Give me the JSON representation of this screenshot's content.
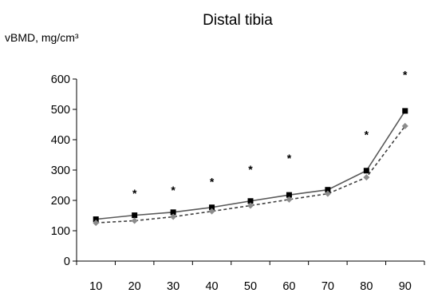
{
  "chart_data": {
    "type": "line",
    "title": "Distal tibia",
    "ylabel": "vBMD, mg/cm³",
    "xlabel": "",
    "categories": [
      "10",
      "20",
      "30",
      "40",
      "50",
      "60",
      "70",
      "80",
      "90"
    ],
    "ylim": [
      0,
      600
    ],
    "yticks": [
      0,
      100,
      200,
      300,
      400,
      500,
      600
    ],
    "series": [
      {
        "values": [
          138,
          151,
          161,
          177,
          198,
          218,
          235,
          298,
          495
        ],
        "marker": "square",
        "line_style": "solid",
        "color": "#595959",
        "marker_color": "#000000"
      },
      {
        "values": [
          126,
          133,
          146,
          164,
          183,
          203,
          222,
          276,
          445
        ],
        "marker": "diamond",
        "line_style": "dashed",
        "color": "#404040",
        "marker_color": "#8c8c8c"
      }
    ],
    "annotations": [
      {
        "category": "20",
        "text": "*",
        "y": 232
      },
      {
        "category": "30",
        "text": "*",
        "y": 242
      },
      {
        "category": "40",
        "text": "*",
        "y": 270
      },
      {
        "category": "50",
        "text": "*",
        "y": 310
      },
      {
        "category": "60",
        "text": "*",
        "y": 348
      },
      {
        "category": "80",
        "text": "*",
        "y": 425
      },
      {
        "category": "90",
        "text": "*",
        "y": 622
      }
    ],
    "grid": false,
    "legend": "none"
  }
}
